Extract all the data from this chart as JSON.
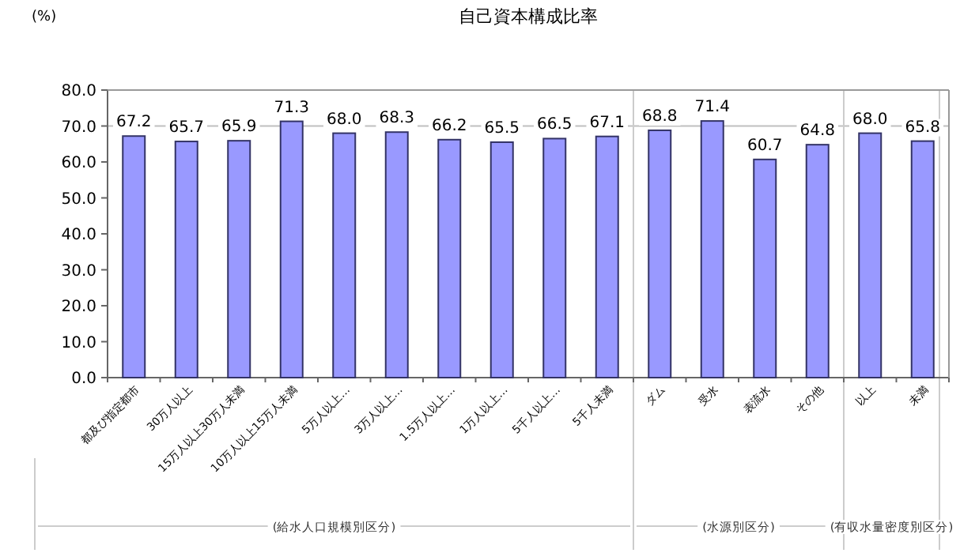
{
  "chart_data": {
    "type": "bar",
    "title": "自己資本構成比率",
    "ylabel": "(%)",
    "categories": [
      "都及び指定都市",
      "30万人以上",
      "15万人以上30万人未満",
      "10万人以上15万人未満",
      "5万人以上…",
      "3万人以上…",
      "1.5万人以上…",
      "1万人以上…",
      "5千人以上…",
      "5千人未満",
      "ダム",
      "受水",
      "表流水",
      "その他",
      "以上",
      "未満"
    ],
    "values": [
      67.2,
      65.7,
      65.9,
      71.3,
      68.0,
      68.3,
      66.2,
      65.5,
      66.5,
      67.1,
      68.8,
      71.4,
      60.7,
      64.8,
      68.0,
      65.8
    ],
    "value_labels": [
      "67.2",
      "65.7",
      "65.9",
      "71.3",
      "68.0",
      "68.3",
      "66.2",
      "65.5",
      "66.5",
      "67.1",
      "68.8",
      "71.4",
      "60.7",
      "64.8",
      "68.0",
      "65.8"
    ],
    "color": "#9999ff",
    "ylim": [
      0,
      80
    ],
    "yticks": [
      {
        "value": 0,
        "label": "0.0"
      },
      {
        "value": 10,
        "label": "10.0"
      },
      {
        "value": 20,
        "label": "20.0"
      },
      {
        "value": 30,
        "label": "30.0"
      },
      {
        "value": 40,
        "label": "40.0"
      },
      {
        "value": 50,
        "label": "50.0"
      },
      {
        "value": 60,
        "label": "60.0"
      },
      {
        "value": 70,
        "label": "70.0"
      },
      {
        "value": 80,
        "label": "80.0"
      }
    ],
    "ref_lines": [
      {
        "axis": "y",
        "value": 70,
        "color": "#c0c0c0"
      }
    ],
    "annotations": [
      "(給水人口規模別区分)",
      "(水源別区分)",
      "(有収水量密度別区分)"
    ]
  }
}
